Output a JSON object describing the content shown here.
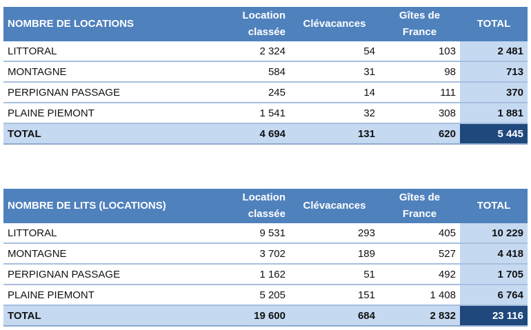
{
  "tables": [
    {
      "title": "NOMBRE DE LOCATIONS",
      "headers": [
        "Location classée",
        "Clévacances",
        "Gîtes de France",
        "TOTAL"
      ],
      "rows": [
        {
          "label": "LITTORAL",
          "v": [
            "2 324",
            "54",
            "103",
            "2 481"
          ]
        },
        {
          "label": "MONTAGNE",
          "v": [
            "584",
            "31",
            "98",
            "713"
          ]
        },
        {
          "label": "PERPIGNAN PASSAGE",
          "v": [
            "245",
            "14",
            "111",
            "370"
          ]
        },
        {
          "label": "PLAINE PIEMONT",
          "v": [
            "1 541",
            "32",
            "308",
            "1 881"
          ]
        },
        {
          "label": "TOTAL",
          "v": [
            "4 694",
            "131",
            "620",
            "5 445"
          ]
        }
      ]
    },
    {
      "title": "NOMBRE DE LITS (LOCATIONS)",
      "headers": [
        "Location classée",
        "Clévacances",
        "Gîtes de France",
        "TOTAL"
      ],
      "rows": [
        {
          "label": "LITTORAL",
          "v": [
            "9 531",
            "293",
            "405",
            "10 229"
          ]
        },
        {
          "label": "MONTAGNE",
          "v": [
            "3 702",
            "189",
            "527",
            "4 418"
          ]
        },
        {
          "label": "PERPIGNAN PASSAGE",
          "v": [
            "1 162",
            "51",
            "492",
            "1 705"
          ]
        },
        {
          "label": "PLAINE PIEMONT",
          "v": [
            "5 205",
            "151",
            "1 408",
            "6 764"
          ]
        },
        {
          "label": "TOTAL",
          "v": [
            "19 600",
            "684",
            "2 832",
            "23 116"
          ]
        }
      ]
    }
  ],
  "colors": {
    "header": "#4F81BD",
    "total_light": "#C5D9F1",
    "grand_total": "#1F497D"
  }
}
